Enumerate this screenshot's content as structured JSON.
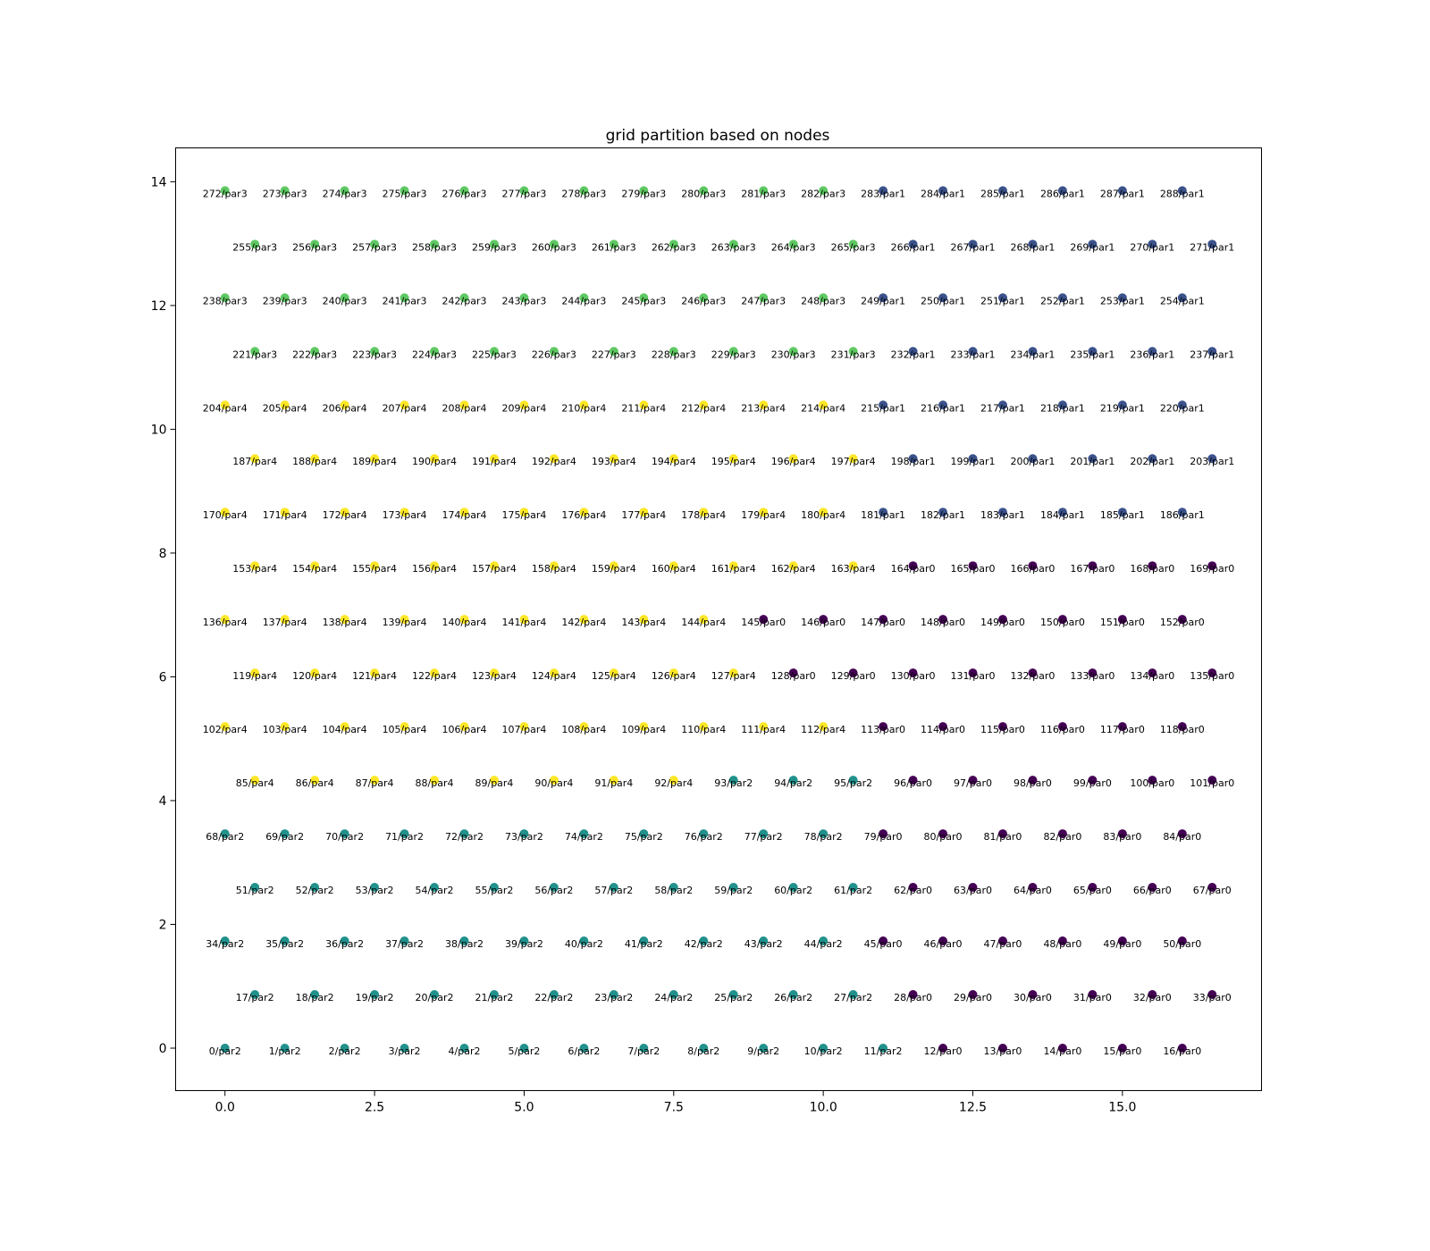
{
  "chart_data": {
    "type": "scatter",
    "title": "grid partition based on nodes",
    "xlabel": "",
    "ylabel": "",
    "xlim": [
      -0.825,
      17.325
    ],
    "ylim": [
      -0.686,
      14.547
    ],
    "x_ticks": [
      0.0,
      2.5,
      5.0,
      7.5,
      10.0,
      12.5,
      15.0
    ],
    "x_tick_labels": [
      "0.0",
      "2.5",
      "5.0",
      "7.5",
      "10.0",
      "12.5",
      "15.0"
    ],
    "y_ticks": [
      0,
      2,
      4,
      6,
      8,
      10,
      12,
      14
    ],
    "y_tick_labels": [
      "0",
      "2",
      "4",
      "6",
      "8",
      "10",
      "12",
      "14"
    ],
    "grid": false,
    "legend": "none",
    "colors": {
      "par0": "#440154",
      "par1": "#3b528b",
      "par2": "#21918c",
      "par3": "#5ec962",
      "par4": "#fde725"
    },
    "grid_shape": {
      "rows": 17,
      "cols": 17,
      "row_spacing_y": 0.866,
      "odd_row_x_offset": 0.5
    },
    "row_partitions": [
      "22222222222200000",
      "22222222222000000",
      "22222222222000000",
      "22222222222000000",
      "22222222222000000",
      "44444444222000000",
      "44444444444000000",
      "44444444400000000",
      "44444444400000000",
      "44444444444000000",
      "44444444444111111",
      "44444444444111111",
      "44444444444111111",
      "33333333333111111",
      "33333333333111111",
      "33333333333111111",
      "33333333333111111"
    ],
    "note_points": "point i sits at row r=floor(i/17), col c=i%17; x=c+0.5*(r%2), y=0.866*r; label '{i}/par{p}'"
  }
}
